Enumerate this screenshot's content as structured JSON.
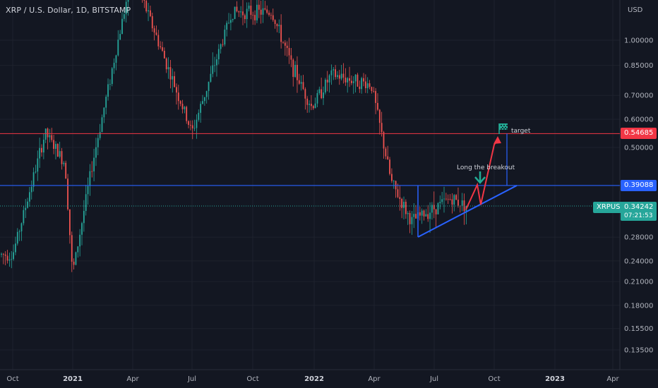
{
  "symbol_title": "XRP / U.S. Dollar, 1D, BITSTAMP",
  "currency": "USD",
  "price_axis": {
    "ticks": [
      "1.00000",
      "0.85000",
      "0.70000",
      "0.60000",
      "0.50000",
      "0.28000",
      "0.24000",
      "0.21000",
      "0.18000",
      "0.15500",
      "0.13500"
    ],
    "tick_values": [
      1.0,
      0.85,
      0.7,
      0.6,
      0.5,
      0.28,
      0.24,
      0.21,
      0.18,
      0.155,
      0.135
    ],
    "scale": "log"
  },
  "time_axis": {
    "labels": [
      "Oct",
      "2021",
      "Apr",
      "Jul",
      "Oct",
      "2022",
      "Apr",
      "Jul",
      "Oct",
      "2023",
      "Apr"
    ],
    "bold": [
      false,
      true,
      false,
      false,
      false,
      true,
      false,
      false,
      false,
      true,
      false
    ]
  },
  "levels": {
    "target_price": "0.54685",
    "breakout_price": "0.39088",
    "current_symbol": "XRPUSD",
    "current_price": "0.34242",
    "countdown": "07:21:53"
  },
  "annotations": {
    "breakout_text": "Long the breakout",
    "target_text": "target"
  },
  "colors": {
    "background": "#131722",
    "up": "#26a69a",
    "down": "#ef5350",
    "target_line": "#f23645",
    "breakout_line": "#2962ff",
    "current_tag": "#26a69a",
    "projection": "#f23645",
    "arrow_green": "#22ab94"
  },
  "chart_data": {
    "type": "candlestick",
    "title": "XRP / U.S. Dollar, 1D, BITSTAMP",
    "y_scale": "log",
    "ylim": [
      0.12,
      2.0
    ],
    "x_range": [
      "2020-10",
      "2023-04"
    ],
    "approx_close_path": [
      {
        "x": "2020-10",
        "y": 0.25
      },
      {
        "x": "2020-11-20",
        "y": 0.55
      },
      {
        "x": "2020-12-20",
        "y": 0.45
      },
      {
        "x": "2021-01",
        "y": 0.22
      },
      {
        "x": "2021-02",
        "y": 0.45
      },
      {
        "x": "2021-04",
        "y": 1.55
      },
      {
        "x": "2021-05",
        "y": 1.1
      },
      {
        "x": "2021-07",
        "y": 0.55
      },
      {
        "x": "2021-09",
        "y": 1.2
      },
      {
        "x": "2021-11",
        "y": 1.2
      },
      {
        "x": "2021-12",
        "y": 0.85
      },
      {
        "x": "2022-01",
        "y": 0.65
      },
      {
        "x": "2022-02",
        "y": 0.8
      },
      {
        "x": "2022-04",
        "y": 0.75
      },
      {
        "x": "2022-05",
        "y": 0.4
      },
      {
        "x": "2022-06",
        "y": 0.31
      },
      {
        "x": "2022-08",
        "y": 0.36
      },
      {
        "x": "2022-08-25",
        "y": 0.34242
      }
    ],
    "horizontal_levels": [
      0.54685,
      0.39088,
      0.34242
    ]
  }
}
